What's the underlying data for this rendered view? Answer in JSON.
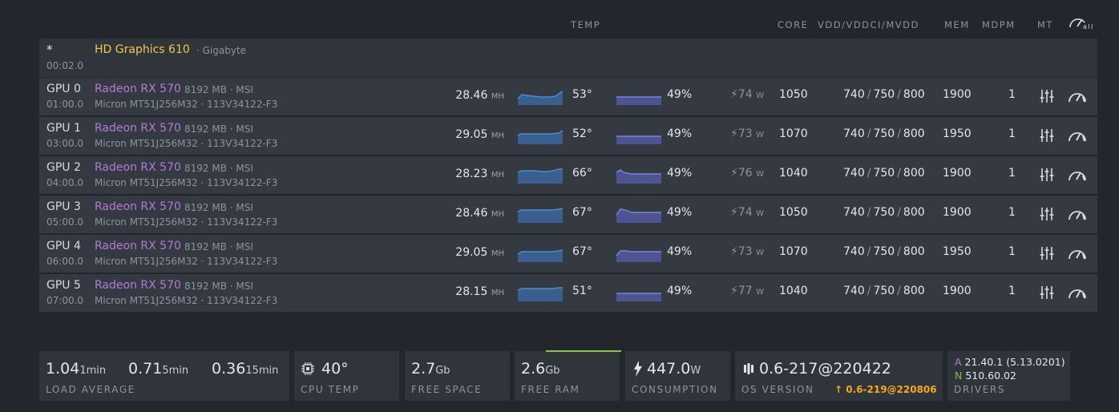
{
  "header": {
    "temp": "TEMP",
    "core": "CORE",
    "vdd": "VDD/VDDCI/MVDD",
    "mem": "MEM",
    "mdpm": "MDPM",
    "mt": "MT",
    "all_icon": "gauge-all-icon",
    "all_label": "all"
  },
  "igpu": {
    "marker": "*",
    "bus": "00:02.0",
    "name": "HD Graphics 610",
    "vendor": "· Gigabyte"
  },
  "gpus": [
    {
      "id": "GPU 0",
      "bus": "01:00.0",
      "name": "Radeon RX 570",
      "memvend": "8192 MB · MSI",
      "vram": "Micron MT51J256M32 · 113V34122-F3",
      "hash": "28.46",
      "hash_unit": "MH",
      "temp": "53°",
      "fan": "49%",
      "power": "74",
      "power_unit": "W",
      "core": "1050",
      "vdd": "740",
      "vddci": "750",
      "mvdd": "800",
      "mem": "1900",
      "mdpm": "1"
    },
    {
      "id": "GPU 1",
      "bus": "03:00.0",
      "name": "Radeon RX 570",
      "memvend": "8192 MB · MSI",
      "vram": "Micron MT51J256M32 · 113V34122-F3",
      "hash": "29.05",
      "hash_unit": "MH",
      "temp": "52°",
      "fan": "49%",
      "power": "73",
      "power_unit": "W",
      "core": "1070",
      "vdd": "740",
      "vddci": "750",
      "mvdd": "800",
      "mem": "1950",
      "mdpm": "1"
    },
    {
      "id": "GPU 2",
      "bus": "04:00.0",
      "name": "Radeon RX 570",
      "memvend": "8192 MB · MSI",
      "vram": "Micron MT51J256M32 · 113V34122-F3",
      "hash": "28.23",
      "hash_unit": "MH",
      "temp": "66°",
      "fan": "49%",
      "power": "76",
      "power_unit": "W",
      "core": "1040",
      "vdd": "740",
      "vddci": "750",
      "mvdd": "800",
      "mem": "1900",
      "mdpm": "1"
    },
    {
      "id": "GPU 3",
      "bus": "05:00.0",
      "name": "Radeon RX 570",
      "memvend": "8192 MB · MSI",
      "vram": "Micron MT51J256M32 · 113V34122-F3",
      "hash": "28.46",
      "hash_unit": "MH",
      "temp": "67°",
      "fan": "49%",
      "power": "74",
      "power_unit": "W",
      "core": "1050",
      "vdd": "740",
      "vddci": "750",
      "mvdd": "800",
      "mem": "1900",
      "mdpm": "1"
    },
    {
      "id": "GPU 4",
      "bus": "06:00.0",
      "name": "Radeon RX 570",
      "memvend": "8192 MB · MSI",
      "vram": "Micron MT51J256M32 · 113V34122-F3",
      "hash": "29.05",
      "hash_unit": "MH",
      "temp": "67°",
      "fan": "49%",
      "power": "73",
      "power_unit": "W",
      "core": "1070",
      "vdd": "740",
      "vddci": "750",
      "mvdd": "800",
      "mem": "1950",
      "mdpm": "1"
    },
    {
      "id": "GPU 5",
      "bus": "07:00.0",
      "name": "Radeon RX 570",
      "memvend": "8192 MB · MSI",
      "vram": "Micron MT51J256M32 · 113V34122-F3",
      "hash": "28.15",
      "hash_unit": "MH",
      "temp": "51°",
      "fan": "49%",
      "power": "77",
      "power_unit": "W",
      "core": "1040",
      "vdd": "740",
      "vddci": "750",
      "mvdd": "800",
      "mem": "1900",
      "mdpm": "1"
    }
  ],
  "row_icons": {
    "tune": "sliders-icon",
    "oc": "gauge-icon",
    "power": "lightning-icon"
  },
  "stats": {
    "load": {
      "v1": "1.04",
      "u1": "1min",
      "v2": "0.71",
      "u2": "5min",
      "v3": "0.36",
      "u3": "15min",
      "label": "LOAD AVERAGE"
    },
    "cpu": {
      "value": "40°",
      "label": "CPU TEMP",
      "icon": "cpu-icon"
    },
    "space": {
      "value": "2.7",
      "unit": "Gb",
      "label": "FREE SPACE"
    },
    "ram": {
      "value": "2.6",
      "unit": "Gb",
      "label": "FREE RAM"
    },
    "power": {
      "value": "447.0",
      "unit": "W",
      "label": "CONSUMPTION",
      "icon": "lightning-icon"
    },
    "os": {
      "value": "0.6-217@220422",
      "label": "OS VERSION",
      "update": "0.6-219@220806",
      "icon": "hive-logo-icon",
      "update_icon": "arrow-up-icon"
    },
    "drivers": {
      "a_tag": "A",
      "a_ver": "21.40.1 (5.13.0201)",
      "n_tag": "N",
      "n_ver": "510.60.02",
      "label": "DRIVERS"
    }
  },
  "colors": {
    "accent_yellow": "#f2c94c",
    "amd_purple": "#b17ad6",
    "sparkline_blue": "#4a90c8",
    "fan_purple": "#7b86d6",
    "ram_green": "#8bc34a",
    "update_orange": "#f5a623"
  }
}
